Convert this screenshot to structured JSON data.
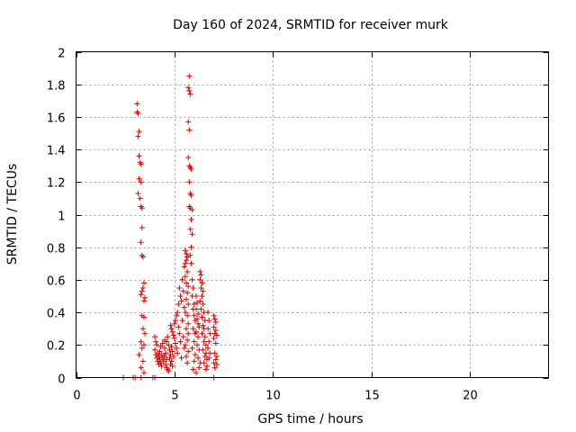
{
  "chart_data": {
    "type": "scatter",
    "title": "Day 160 of 2024, SRMTID for receiver murk",
    "xlabel": "GPS time / hours",
    "ylabel": "SRMTID / TECUs",
    "xlim": [
      0,
      24
    ],
    "ylim": [
      0,
      2
    ],
    "x_ticks": [
      "0",
      "5",
      "10",
      "15",
      "20"
    ],
    "y_ticks": [
      "0",
      "0.2",
      "0.4",
      "0.6",
      "0.8",
      "1",
      "1.2",
      "1.4",
      "1.6",
      "1.8",
      "2"
    ],
    "grid": true,
    "marker": "+",
    "color": "#e00000",
    "series": [
      {
        "points": [
          [
            2.4,
            0.0
          ],
          [
            2.9,
            0.0
          ],
          [
            3.0,
            0.0
          ],
          [
            3.3,
            0.0
          ],
          [
            3.9,
            0.0
          ],
          [
            4.0,
            0.0
          ],
          [
            7.0,
            0.0
          ],
          [
            3.1,
            1.68
          ],
          [
            3.1,
            1.63
          ],
          [
            3.15,
            1.62
          ],
          [
            3.2,
            1.51
          ],
          [
            3.15,
            1.48
          ],
          [
            3.2,
            1.36
          ],
          [
            3.25,
            1.32
          ],
          [
            3.3,
            1.31
          ],
          [
            3.2,
            1.22
          ],
          [
            3.3,
            1.2
          ],
          [
            3.15,
            1.13
          ],
          [
            3.25,
            1.1
          ],
          [
            3.3,
            1.05
          ],
          [
            3.35,
            1.04
          ],
          [
            3.35,
            0.92
          ],
          [
            3.3,
            0.83
          ],
          [
            3.35,
            0.75
          ],
          [
            3.4,
            0.74
          ],
          [
            3.45,
            0.58
          ],
          [
            3.4,
            0.55
          ],
          [
            3.35,
            0.53
          ],
          [
            3.3,
            0.51
          ],
          [
            3.5,
            0.49
          ],
          [
            3.45,
            0.47
          ],
          [
            3.35,
            0.38
          ],
          [
            3.45,
            0.37
          ],
          [
            3.4,
            0.3
          ],
          [
            3.5,
            0.27
          ],
          [
            3.3,
            0.22
          ],
          [
            3.45,
            0.2
          ],
          [
            3.35,
            0.18
          ],
          [
            3.2,
            0.14
          ],
          [
            3.4,
            0.1
          ],
          [
            3.3,
            0.06
          ],
          [
            3.45,
            0.03
          ],
          [
            4.0,
            0.25
          ],
          [
            4.05,
            0.22
          ],
          [
            4.1,
            0.2
          ],
          [
            4.0,
            0.17
          ],
          [
            4.15,
            0.15
          ],
          [
            4.05,
            0.14
          ],
          [
            4.2,
            0.13
          ],
          [
            4.1,
            0.12
          ],
          [
            4.25,
            0.11
          ],
          [
            4.15,
            0.1
          ],
          [
            4.3,
            0.09
          ],
          [
            4.2,
            0.08
          ],
          [
            4.35,
            0.07
          ],
          [
            4.25,
            0.16
          ],
          [
            4.3,
            0.19
          ],
          [
            4.35,
            0.14
          ],
          [
            4.4,
            0.12
          ],
          [
            4.45,
            0.1
          ],
          [
            4.4,
            0.21
          ],
          [
            4.5,
            0.18
          ],
          [
            4.55,
            0.15
          ],
          [
            4.5,
            0.13
          ],
          [
            4.6,
            0.11
          ],
          [
            4.55,
            0.08
          ],
          [
            4.6,
            0.06
          ],
          [
            4.65,
            0.05
          ],
          [
            4.7,
            0.04
          ],
          [
            4.6,
            0.22
          ],
          [
            4.7,
            0.2
          ],
          [
            4.75,
            0.17
          ],
          [
            4.8,
            0.14
          ],
          [
            4.75,
            0.12
          ],
          [
            4.85,
            0.1
          ],
          [
            4.8,
            0.08
          ],
          [
            4.9,
            0.07
          ],
          [
            4.5,
            0.23
          ],
          [
            4.65,
            0.25
          ],
          [
            4.85,
            0.19
          ],
          [
            4.9,
            0.16
          ],
          [
            4.95,
            0.13
          ],
          [
            4.8,
            0.32
          ],
          [
            4.85,
            0.3
          ],
          [
            4.9,
            0.28
          ],
          [
            4.95,
            0.26
          ],
          [
            5.0,
            0.33
          ],
          [
            5.0,
            0.24
          ],
          [
            5.05,
            0.35
          ],
          [
            5.05,
            0.21
          ],
          [
            5.1,
            0.38
          ],
          [
            5.1,
            0.18
          ],
          [
            5.15,
            0.4
          ],
          [
            5.15,
            0.15
          ],
          [
            5.2,
            0.45
          ],
          [
            5.2,
            0.31
          ],
          [
            5.25,
            0.55
          ],
          [
            5.25,
            0.27
          ],
          [
            5.3,
            0.5
          ],
          [
            5.3,
            0.22
          ],
          [
            5.35,
            0.47
          ],
          [
            5.35,
            0.12
          ],
          [
            5.4,
            0.6
          ],
          [
            5.4,
            0.35
          ],
          [
            5.45,
            0.53
          ],
          [
            5.45,
            0.25
          ],
          [
            5.5,
            0.68
          ],
          [
            5.5,
            0.43
          ],
          [
            5.5,
            0.18
          ],
          [
            5.55,
            0.78
          ],
          [
            5.6,
            0.76
          ],
          [
            5.6,
            0.72
          ],
          [
            5.65,
            0.74
          ],
          [
            5.55,
            0.7
          ],
          [
            5.65,
            0.65
          ],
          [
            5.55,
            0.62
          ],
          [
            5.6,
            0.58
          ],
          [
            5.7,
            0.56
          ],
          [
            5.65,
            0.52
          ],
          [
            5.6,
            0.48
          ],
          [
            5.7,
            0.45
          ],
          [
            5.55,
            0.4
          ],
          [
            5.65,
            0.38
          ],
          [
            5.7,
            0.33
          ],
          [
            5.6,
            0.3
          ],
          [
            5.7,
            0.27
          ],
          [
            5.65,
            0.23
          ],
          [
            5.55,
            0.2
          ],
          [
            5.7,
            0.16
          ],
          [
            5.6,
            0.13
          ],
          [
            5.65,
            0.09
          ],
          [
            5.75,
            1.85
          ],
          [
            5.7,
            1.78
          ],
          [
            5.75,
            1.76
          ],
          [
            5.8,
            1.74
          ],
          [
            5.7,
            1.57
          ],
          [
            5.75,
            1.52
          ],
          [
            5.7,
            1.35
          ],
          [
            5.75,
            1.3
          ],
          [
            5.8,
            1.29
          ],
          [
            5.85,
            1.28
          ],
          [
            5.75,
            1.2
          ],
          [
            5.8,
            1.13
          ],
          [
            5.85,
            1.12
          ],
          [
            5.75,
            1.05
          ],
          [
            5.8,
            1.04
          ],
          [
            5.9,
            1.03
          ],
          [
            5.85,
            0.97
          ],
          [
            5.8,
            0.91
          ],
          [
            5.9,
            0.88
          ],
          [
            5.85,
            0.8
          ],
          [
            5.8,
            0.75
          ],
          [
            5.85,
            0.7
          ],
          [
            5.9,
            0.6
          ],
          [
            5.95,
            0.55
          ],
          [
            5.9,
            0.5
          ],
          [
            6.0,
            0.45
          ],
          [
            5.95,
            0.42
          ],
          [
            6.0,
            0.38
          ],
          [
            6.05,
            0.35
          ],
          [
            5.95,
            0.3
          ],
          [
            6.05,
            0.27
          ],
          [
            6.0,
            0.22
          ],
          [
            5.9,
            0.18
          ],
          [
            6.05,
            0.14
          ],
          [
            6.0,
            0.1
          ],
          [
            5.95,
            0.05
          ],
          [
            6.1,
            0.03
          ],
          [
            6.1,
            0.5
          ],
          [
            6.15,
            0.46
          ],
          [
            6.1,
            0.42
          ],
          [
            6.2,
            0.39
          ],
          [
            6.15,
            0.36
          ],
          [
            6.2,
            0.33
          ],
          [
            6.25,
            0.31
          ],
          [
            6.1,
            0.28
          ],
          [
            6.2,
            0.25
          ],
          [
            6.15,
            0.2
          ],
          [
            6.25,
            0.17
          ],
          [
            6.2,
            0.12
          ],
          [
            6.3,
            0.09
          ],
          [
            6.25,
            0.06
          ],
          [
            6.3,
            0.65
          ],
          [
            6.35,
            0.63
          ],
          [
            6.3,
            0.6
          ],
          [
            6.4,
            0.58
          ],
          [
            6.35,
            0.55
          ],
          [
            6.45,
            0.53
          ],
          [
            6.4,
            0.5
          ],
          [
            6.3,
            0.47
          ],
          [
            6.45,
            0.45
          ],
          [
            6.35,
            0.42
          ],
          [
            6.5,
            0.4
          ],
          [
            6.4,
            0.37
          ],
          [
            6.55,
            0.35
          ],
          [
            6.45,
            0.32
          ],
          [
            6.5,
            0.3
          ],
          [
            6.4,
            0.27
          ],
          [
            6.55,
            0.25
          ],
          [
            6.5,
            0.22
          ],
          [
            6.6,
            0.2
          ],
          [
            6.45,
            0.17
          ],
          [
            6.6,
            0.15
          ],
          [
            6.55,
            0.13
          ],
          [
            6.65,
            0.11
          ],
          [
            6.5,
            0.09
          ],
          [
            6.65,
            0.07
          ],
          [
            6.6,
            0.05
          ],
          [
            6.7,
            0.4
          ],
          [
            6.75,
            0.35
          ],
          [
            6.7,
            0.3
          ],
          [
            6.8,
            0.27
          ],
          [
            6.75,
            0.22
          ],
          [
            6.7,
            0.18
          ],
          [
            6.8,
            0.15
          ],
          [
            6.75,
            0.12
          ],
          [
            7.0,
            0.38
          ],
          [
            7.05,
            0.36
          ],
          [
            7.1,
            0.34
          ],
          [
            7.0,
            0.31
          ],
          [
            7.1,
            0.29
          ],
          [
            7.05,
            0.27
          ],
          [
            7.15,
            0.26
          ],
          [
            7.0,
            0.24
          ],
          [
            7.1,
            0.21
          ],
          [
            7.05,
            0.15
          ],
          [
            7.15,
            0.13
          ],
          [
            7.1,
            0.11
          ],
          [
            7.0,
            0.09
          ],
          [
            7.15,
            0.08
          ],
          [
            7.05,
            0.06
          ]
        ]
      }
    ]
  }
}
